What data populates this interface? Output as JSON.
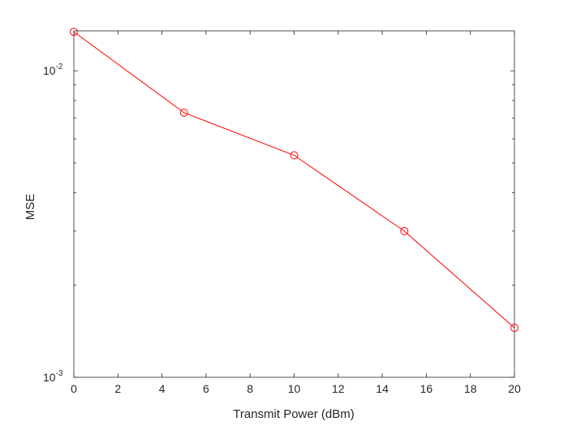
{
  "chart_data": {
    "type": "line",
    "title": "",
    "xlabel": "Transmit Power (dBm)",
    "ylabel": "MSE",
    "xlim": [
      0,
      20
    ],
    "ylim": [
      0.001,
      0.0135
    ],
    "yscale": "log",
    "grid": false,
    "legend": "none",
    "x_ticks": [
      0,
      2,
      4,
      6,
      8,
      10,
      12,
      14,
      16,
      18,
      20
    ],
    "y_ticks": [
      {
        "value": 0.001,
        "base": "10",
        "exponent": "-3"
      },
      {
        "value": 0.01,
        "base": "10",
        "exponent": "-2"
      }
    ],
    "series": [
      {
        "x": [
          0,
          5,
          10,
          15,
          20
        ],
        "values": [
          0.0134,
          0.0073,
          0.0053,
          0.003,
          0.00145
        ],
        "color": "#ff0000",
        "marker": "circle"
      }
    ]
  }
}
